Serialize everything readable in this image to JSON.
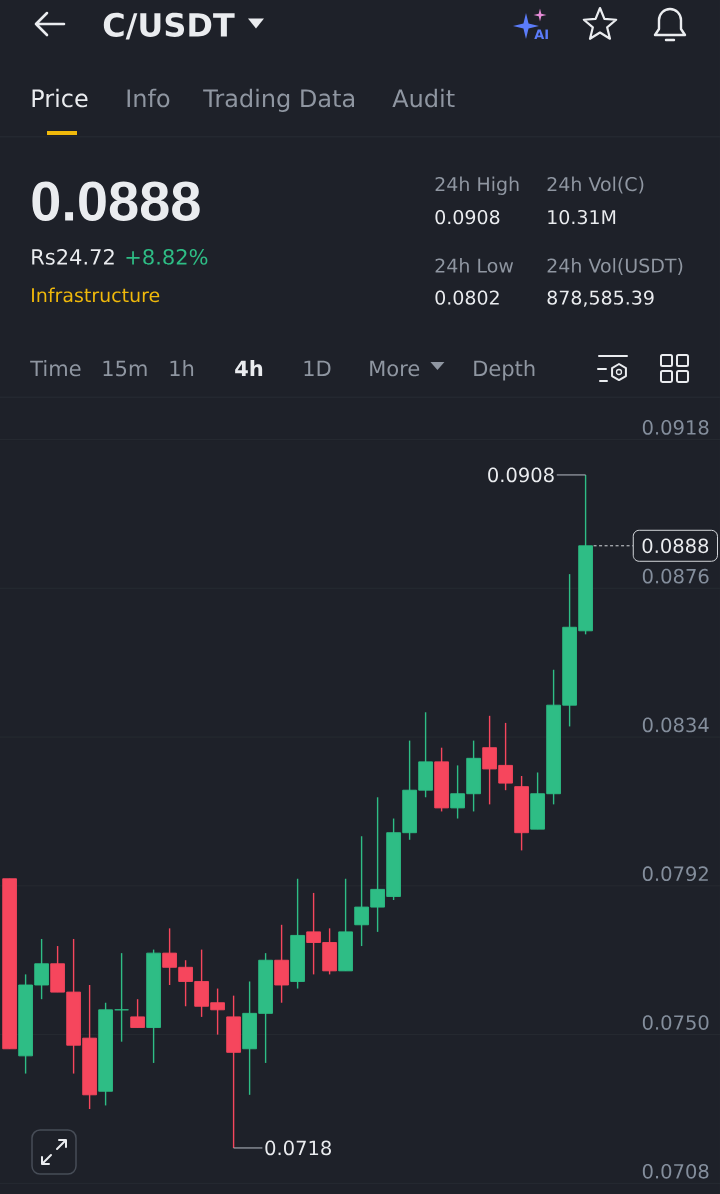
{
  "chart_data": {
    "type": "candlestick",
    "title": "C/USDT",
    "categories": [
      null,
      null,
      null,
      null,
      null,
      null,
      null,
      null,
      null,
      null,
      null,
      null,
      null,
      null,
      null,
      null,
      null,
      null,
      null,
      null,
      null,
      null,
      null,
      null,
      null,
      null,
      null,
      null,
      null,
      null,
      null,
      null,
      null,
      null,
      null,
      null,
      null
    ],
    "ohlc": [
      [
        0.0794,
        0.0794,
        0.0746,
        0.0746
      ],
      [
        0.0744,
        0.0767,
        0.0739,
        0.0764
      ],
      [
        0.0764,
        0.0777,
        0.076,
        0.077
      ],
      [
        0.077,
        0.0775,
        0.0762,
        0.0762
      ],
      [
        0.0762,
        0.0777,
        0.0739,
        0.0747
      ],
      [
        0.0749,
        0.0764,
        0.0729,
        0.0733
      ],
      [
        0.0734,
        0.0759,
        0.073,
        0.0757
      ],
      [
        0.0757,
        0.0773,
        0.0748,
        0.0757
      ],
      [
        0.0755,
        0.076,
        0.0752,
        0.0752
      ],
      [
        0.0752,
        0.0774,
        0.0742,
        0.0773
      ],
      [
        0.0773,
        0.078,
        0.0764,
        0.0769
      ],
      [
        0.0769,
        0.0771,
        0.0758,
        0.0765
      ],
      [
        0.0765,
        0.0774,
        0.0755,
        0.0758
      ],
      [
        0.0759,
        0.0763,
        0.075,
        0.0757
      ],
      [
        0.0755,
        0.0761,
        0.0718,
        0.0745
      ],
      [
        0.0746,
        0.0765,
        0.0733,
        0.0756
      ],
      [
        0.0756,
        0.0773,
        0.0742,
        0.0771
      ],
      [
        0.0771,
        0.0781,
        0.0759,
        0.0764
      ],
      [
        0.0765,
        0.0794,
        0.0763,
        0.0778
      ],
      [
        0.0779,
        0.079,
        0.0767,
        0.0776
      ],
      [
        0.0776,
        0.078,
        0.0767,
        0.0768
      ],
      [
        0.0768,
        0.0794,
        0.0768,
        0.0779
      ],
      [
        0.0781,
        0.0806,
        0.0775,
        0.0786
      ],
      [
        0.0786,
        0.0817,
        0.0779,
        0.0791
      ],
      [
        0.0789,
        0.0811,
        0.0788,
        0.0807
      ],
      [
        0.0807,
        0.0833,
        0.0805,
        0.0819
      ],
      [
        0.0819,
        0.0841,
        0.0817,
        0.0827
      ],
      [
        0.0827,
        0.0831,
        0.0813,
        0.0814
      ],
      [
        0.0814,
        0.0826,
        0.0811,
        0.0818
      ],
      [
        0.0818,
        0.0833,
        0.0813,
        0.0828
      ],
      [
        0.0831,
        0.084,
        0.0815,
        0.0825
      ],
      [
        0.0826,
        0.0838,
        0.0819,
        0.0821
      ],
      [
        0.082,
        0.0823,
        0.0802,
        0.0807
      ],
      [
        0.0808,
        0.0824,
        0.0808,
        0.0818
      ],
      [
        0.0818,
        0.0853,
        0.0815,
        0.0843
      ],
      [
        0.0843,
        0.088,
        0.0837,
        0.0865
      ],
      [
        0.0864,
        0.0908,
        0.0863,
        0.0888
      ]
    ],
    "colors": [
      "#f6465d",
      "#2ebd85",
      "#2ebd85",
      "#f6465d",
      "#f6465d",
      "#f6465d",
      "#2ebd85",
      "#2ebd85",
      "#f6465d",
      "#2ebd85",
      "#f6465d",
      "#f6465d",
      "#f6465d",
      "#f6465d",
      "#f6465d",
      "#2ebd85",
      "#2ebd85",
      "#f6465d",
      "#2ebd85",
      "#f6465d",
      "#f6465d",
      "#2ebd85",
      "#2ebd85",
      "#2ebd85",
      "#2ebd85",
      "#2ebd85",
      "#2ebd85",
      "#f6465d",
      "#2ebd85",
      "#2ebd85",
      "#f6465d",
      "#f6465d",
      "#f6465d",
      "#2ebd85",
      "#2ebd85",
      "#2ebd85",
      "#2ebd85"
    ],
    "ylim": [
      0.0705,
      0.093
    ],
    "yticks": [
      0.0918,
      0.0876,
      0.0834,
      0.0792,
      {
        "value": 0.075,
        "label": "0.0750"
      },
      0.0708
    ],
    "grid": "y",
    "tick_labels": "y",
    "ref_lines": [
      {
        "axis": "y",
        "value": 0.0888,
        "label": "0.0888",
        "color": "#d5d8dc",
        "line_style": "dashed"
      }
    ],
    "annotations": [
      "AI",
      "Price",
      "Info",
      "Trading Data",
      "Audit",
      "0.0888",
      "Rs24.72",
      "+8.82%",
      "Infrastructure",
      "24h High",
      "24h Vol(C)",
      "0.0908",
      "10.31M",
      "24h Low",
      "24h Vol(USDT)",
      "0.0802",
      "878,585.39",
      "Time",
      "15m",
      "1h",
      "4h",
      "1D",
      "More",
      "Depth",
      "0.0908",
      "0.0718"
    ]
  }
}
